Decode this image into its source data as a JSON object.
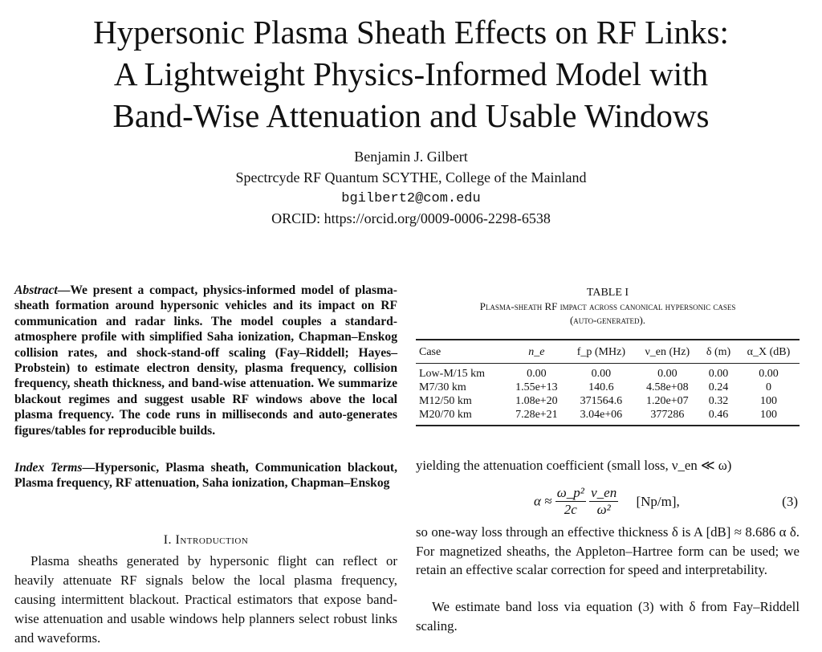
{
  "title_lines": [
    "Hypersonic Plasma Sheath Effects on RF Links:",
    "A Lightweight Physics-Informed Model with",
    "Band-Wise Attenuation and Usable Windows"
  ],
  "author": "Benjamin J. Gilbert",
  "affiliation": "Spectrcyde RF Quantum SCYTHE, College of the Mainland",
  "email": "bgilbert2@com.edu",
  "orcid": "ORCID: https://orcid.org/0009-0006-2298-6538",
  "abstract_label": "Abstract",
  "abstract": "—We present a compact, physics-informed model of plasma-sheath formation around hypersonic vehicles and its impact on RF communication and radar links. The model couples a standard-atmosphere profile with simplified Saha ionization, Chapman–Enskog collision rates, and shock-stand-off scaling (Fay–Riddell; Hayes–Probstein) to estimate electron density, plasma frequency, collision frequency, sheath thickness, and band-wise attenuation. We summarize blackout regimes and suggest usable RF windows above the local plasma frequency. The code runs in milliseconds and auto-generates figures/tables for reproducible builds.",
  "index_label": "Index Terms",
  "index_terms": "—Hypersonic, Plasma sheath, Communication blackout, Plasma frequency, RF attenuation, Saha ionization, Chapman–Enskog",
  "section1": "I. Introduction",
  "intro": "Plasma sheaths generated by hypersonic flight can reflect or heavily attenuate RF signals below the local plasma frequency, causing intermittent blackout. Practical estimators that expose band-wise attenuation and usable windows help planners select robust links and waveforms.",
  "table": {
    "label": "TABLE I",
    "caption1": "Plasma-sheath RF impact across canonical hypersonic cases",
    "caption2": "(auto-generated).",
    "headers": [
      "Case",
      "n_e",
      "f_p (MHz)",
      "ν_en (Hz)",
      "δ (m)",
      "α_X (dB)"
    ],
    "rows": [
      [
        "Low-M/15 km",
        "0.00",
        "0.00",
        "0.00",
        "0.00",
        "0.00"
      ],
      [
        "M7/30 km",
        "1.55e+13",
        "140.6",
        "4.58e+08",
        "0.24",
        "0"
      ],
      [
        "M12/50 km",
        "1.08e+20",
        "371564.6",
        "1.20e+07",
        "0.32",
        "100"
      ],
      [
        "M20/70 km",
        "7.28e+21",
        "3.04e+06",
        "377286",
        "0.46",
        "100"
      ]
    ]
  },
  "right_p1": "yielding the attenuation coefficient (small loss, ν_en ≪ ω)",
  "equation": {
    "lhs": "α ≈",
    "num1": "ω_p²",
    "den1": "2c",
    "num2": "ν_en",
    "den2": "ω²",
    "units": "[Np/m],",
    "number": "(3)"
  },
  "right_p2": "so one-way loss through an effective thickness δ is A [dB] ≈ 8.686 α δ. For magnetized sheaths, the Appleton–Hartree form can be used; we retain an effective scalar correction for speed and interpretability.",
  "right_p3": "We estimate band loss via equation (3) with δ from Fay–Riddell scaling."
}
